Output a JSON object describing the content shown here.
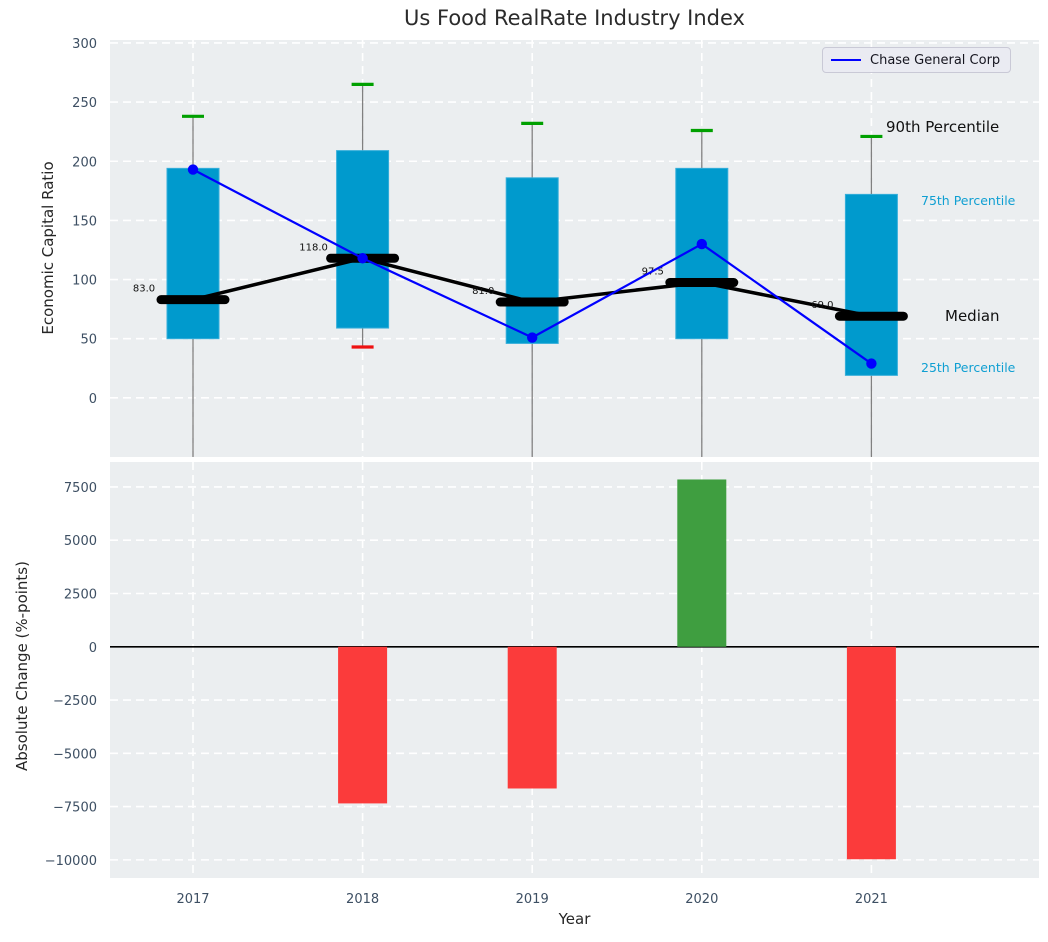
{
  "title": "Us Food RealRate Industry Index",
  "legend": {
    "label": "Chase General Corp",
    "line_color": "#0000ff"
  },
  "annotations": {
    "p90": "90th Percentile",
    "p75": "75th Percentile",
    "median": "Median",
    "p25": "25th Percentile"
  },
  "colors": {
    "panel_bg": "#ebeef0",
    "grid": "#ffffff",
    "box_fill": "#009acd",
    "box_edge": "#35aeda",
    "whisker": "#808080",
    "cap_90": "#00a000",
    "cap_10": "#ee1111",
    "median_line": "#000000",
    "company_line": "#0000ff",
    "bar_positive": "#3f9e40",
    "bar_negative": "#fb3b3b",
    "zero_line": "#000000",
    "tick_text": "#3d4f63",
    "label_text": "#262626"
  },
  "chart_data": [
    {
      "type": "box",
      "panel": "top",
      "ylabel": "Economic Capital Ratio",
      "categories": [
        "2017",
        "2018",
        "2019",
        "2020",
        "2021"
      ],
      "yticks": [
        300,
        250,
        200,
        150,
        100,
        50,
        0
      ],
      "ylim": [
        -50,
        302.5
      ],
      "grid": true,
      "boxes": [
        {
          "year": "2017",
          "p10": null,
          "p25": 50,
          "median": 83.0,
          "p75": 194,
          "p90": 238
        },
        {
          "year": "2018",
          "p10": 43,
          "p25": 59,
          "median": 118.0,
          "p75": 209,
          "p90": 265
        },
        {
          "year": "2019",
          "p10": null,
          "p25": 46,
          "median": 81.0,
          "p75": 186,
          "p90": 232
        },
        {
          "year": "2020",
          "p10": null,
          "p25": 50,
          "median": 97.5,
          "p75": 194,
          "p90": 226
        },
        {
          "year": "2021",
          "p10": null,
          "p25": 19,
          "median": 69.0,
          "p75": 172,
          "p90": 221
        }
      ],
      "median_labels": [
        "83.0",
        "118.0",
        "81.0",
        "97.5",
        "69.0"
      ],
      "series": [
        {
          "name": "Chase General Corp",
          "values": [
            193,
            118,
            51,
            130,
            29
          ],
          "color": "#0000ff"
        }
      ],
      "legend_position": "upper right"
    },
    {
      "type": "bar",
      "panel": "bottom",
      "ylabel": "Absolute Change (%-points)",
      "xlabel": "Year",
      "categories": [
        "2017",
        "2018",
        "2019",
        "2020",
        "2021"
      ],
      "values": [
        0,
        -7350,
        -6650,
        7850,
        -9970
      ],
      "yticks": [
        7500,
        5000,
        2500,
        0,
        -2500,
        -5000,
        -7500,
        -10000
      ],
      "ylim": [
        -10850,
        8670
      ],
      "grid": true
    }
  ]
}
